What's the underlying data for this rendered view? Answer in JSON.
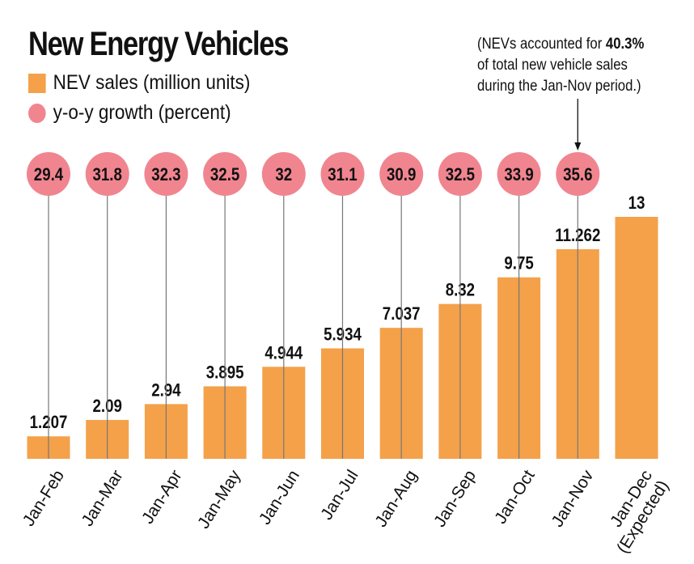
{
  "chart_data": {
    "type": "bar",
    "title": "New Energy Vehicles",
    "categories": [
      "Jan-Feb",
      "Jan-Mar",
      "Jan-Apr",
      "Jan-May",
      "Jan-Jun",
      "Jan-Jul",
      "Jan-Aug",
      "Jan-Sep",
      "Jan-Oct",
      "Jan-Nov",
      "Jan-Dec (Expected)"
    ],
    "series": [
      {
        "name": "NEV sales (million units)",
        "values": [
          1.207,
          2.09,
          2.94,
          3.895,
          4.944,
          5.934,
          7.037,
          8.32,
          9.75,
          11.262,
          13
        ],
        "color": "#f4a14a"
      },
      {
        "name": "y-o-y growth (percent)",
        "values": [
          29.4,
          31.8,
          32.3,
          32.5,
          32,
          31.1,
          30.9,
          32.5,
          33.9,
          35.6,
          null
        ],
        "color": "#f08590"
      }
    ],
    "annotation": {
      "pre": "(NEVs accounted for ",
      "bold": "40.3%",
      "line2": "of total new vehicle sales",
      "line3": "during the Jan-Nov period.)"
    },
    "ylim": [
      0,
      13
    ]
  }
}
